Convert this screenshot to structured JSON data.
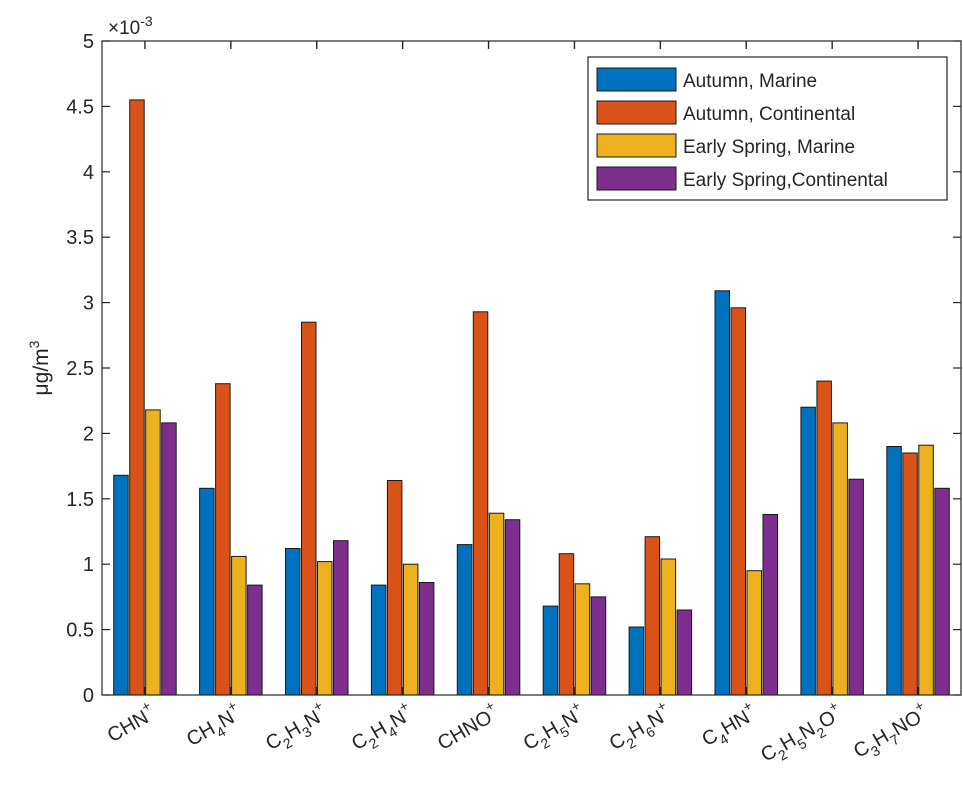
{
  "chart_data": {
    "type": "bar",
    "title": "",
    "xlabel": "",
    "ylabel": "μg/m",
    "ylabel_superscript": "3",
    "y_multiplier": {
      "base": "×10",
      "exponent": "-3"
    },
    "ylim": [
      0,
      5
    ],
    "yticks": [
      0,
      0.5,
      1,
      1.5,
      2,
      2.5,
      3,
      3.5,
      4,
      4.5,
      5
    ],
    "ytick_labels": [
      "0",
      "0.5",
      "1",
      "1.5",
      "2",
      "2.5",
      "3",
      "3.5",
      "4",
      "4.5",
      "5"
    ],
    "grid": false,
    "legend_position": "top-right",
    "categories": [
      "CHN+",
      "CH4N+",
      "C2H3N+",
      "C2H4N+",
      "CHNO+",
      "C2H5N+",
      "C2H6N+",
      "C4HN+",
      "C2H5N2O+",
      "C3H7NO+"
    ],
    "category_labels": [
      [
        [
          "CHN",
          ""
        ],
        [
          "+",
          "sup"
        ]
      ],
      [
        [
          "CH",
          ""
        ],
        [
          "4",
          "sub"
        ],
        [
          "N",
          ""
        ],
        [
          "+",
          "sup"
        ]
      ],
      [
        [
          "C",
          ""
        ],
        [
          "2",
          "sub"
        ],
        [
          "H",
          ""
        ],
        [
          "3",
          "sub"
        ],
        [
          "N",
          ""
        ],
        [
          "+",
          "sup"
        ]
      ],
      [
        [
          "C",
          ""
        ],
        [
          "2",
          "sub"
        ],
        [
          "H",
          ""
        ],
        [
          "4",
          "sub"
        ],
        [
          "N",
          ""
        ],
        [
          "+",
          "sup"
        ]
      ],
      [
        [
          "CHNO",
          ""
        ],
        [
          "+",
          "sup"
        ]
      ],
      [
        [
          "C",
          ""
        ],
        [
          "2",
          "sub"
        ],
        [
          "H",
          ""
        ],
        [
          "5",
          "sub"
        ],
        [
          "N",
          ""
        ],
        [
          "+",
          "sup"
        ]
      ],
      [
        [
          "C",
          ""
        ],
        [
          "2",
          "sub"
        ],
        [
          "H",
          ""
        ],
        [
          "6",
          "sub"
        ],
        [
          "N",
          ""
        ],
        [
          "+",
          "sup"
        ]
      ],
      [
        [
          "C",
          ""
        ],
        [
          "4",
          "sub"
        ],
        [
          "HN",
          ""
        ],
        [
          "+",
          "sup"
        ]
      ],
      [
        [
          "C",
          ""
        ],
        [
          "2",
          "sub"
        ],
        [
          "H",
          ""
        ],
        [
          "5",
          "sub"
        ],
        [
          "N",
          ""
        ],
        [
          "2",
          "sub"
        ],
        [
          "O",
          ""
        ],
        [
          "+",
          "sup"
        ]
      ],
      [
        [
          "C",
          ""
        ],
        [
          "3",
          "sub"
        ],
        [
          "H",
          ""
        ],
        [
          "7",
          "sub"
        ],
        [
          "NO",
          ""
        ],
        [
          "+",
          "sup"
        ]
      ]
    ],
    "series": [
      {
        "name": "Autumn, Marine",
        "color": "#0072BD",
        "values": [
          1.68,
          1.58,
          1.12,
          0.84,
          1.15,
          0.68,
          0.52,
          3.09,
          2.2,
          1.9
        ]
      },
      {
        "name": "Autumn, Continental",
        "color": "#D95319",
        "values": [
          4.55,
          2.38,
          2.85,
          1.64,
          2.93,
          1.08,
          1.21,
          2.96,
          2.4,
          1.85
        ]
      },
      {
        "name": "Early Spring, Marine",
        "color": "#EDB120",
        "values": [
          2.18,
          1.06,
          1.02,
          1.0,
          1.39,
          0.85,
          1.04,
          0.95,
          2.08,
          1.91
        ]
      },
      {
        "name": "Early Spring,Continental",
        "color": "#7E2F8E",
        "values": [
          2.08,
          0.84,
          1.18,
          0.86,
          1.34,
          0.75,
          0.65,
          1.38,
          1.65,
          1.58
        ]
      }
    ]
  }
}
